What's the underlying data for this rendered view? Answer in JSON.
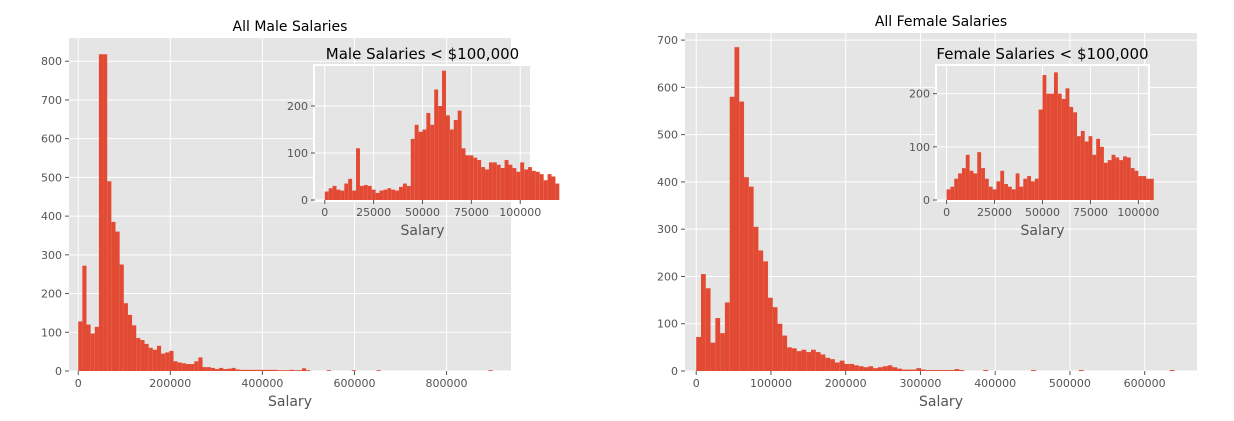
{
  "chart_data": [
    {
      "type": "bar",
      "title": "All Male Salaries",
      "xlabel": "Salary",
      "ylabel": "",
      "xlim": [
        -20000,
        940000
      ],
      "ylim": [
        0,
        860
      ],
      "xticks": [
        {
          "v": 0,
          "label": "0"
        },
        {
          "v": 200000,
          "label": "200000"
        },
        {
          "v": 400000,
          "label": "400000"
        },
        {
          "v": 600000,
          "label": "600000"
        },
        {
          "v": 800000,
          "label": "800000"
        }
      ],
      "yticks": [
        {
          "v": 0,
          "label": "0"
        },
        {
          "v": 100,
          "label": "100"
        },
        {
          "v": 200,
          "label": "200"
        },
        {
          "v": 300,
          "label": "300"
        },
        {
          "v": 400,
          "label": "400"
        },
        {
          "v": 500,
          "label": "500"
        },
        {
          "v": 600,
          "label": "600"
        },
        {
          "v": 700,
          "label": "700"
        },
        {
          "v": 800,
          "label": "800"
        }
      ],
      "bin_start": 0,
      "bin_width": 9000,
      "values": [
        128,
        272,
        120,
        97,
        114,
        818,
        818,
        490,
        385,
        360,
        275,
        175,
        145,
        118,
        85,
        80,
        70,
        60,
        55,
        65,
        45,
        48,
        52,
        25,
        22,
        20,
        18,
        18,
        25,
        35,
        10,
        10,
        8,
        5,
        8,
        5,
        6,
        8,
        4,
        3,
        3,
        3,
        3,
        3,
        3,
        3,
        3,
        3,
        2,
        2,
        2,
        3,
        2,
        2,
        7,
        2,
        0,
        0,
        0,
        0,
        2,
        0,
        0,
        0,
        0,
        0,
        2,
        0,
        0,
        0,
        0,
        0,
        2,
        0,
        0,
        0,
        0,
        0,
        0,
        0,
        0,
        0,
        0,
        0,
        0,
        0,
        0,
        0,
        0,
        0,
        0,
        0,
        0,
        0,
        0,
        0,
        0,
        0,
        0,
        2
      ]
    },
    {
      "type": "bar",
      "title": "Male Salaries < $100,000",
      "xlabel": "Salary",
      "ylabel": "",
      "xlim": [
        -5000,
        105000
      ],
      "ylim": [
        0,
        285
      ],
      "xticks": [
        {
          "v": 0,
          "label": "0"
        },
        {
          "v": 25000,
          "label": "25000"
        },
        {
          "v": 50000,
          "label": "50000"
        },
        {
          "v": 75000,
          "label": "75000"
        },
        {
          "v": 100000,
          "label": "100000"
        }
      ],
      "yticks": [
        {
          "v": 0,
          "label": "0"
        },
        {
          "v": 100,
          "label": "100"
        },
        {
          "v": 200,
          "label": "200"
        }
      ],
      "bin_start": 0,
      "bin_width": 2000,
      "values": [
        18,
        25,
        30,
        22,
        20,
        35,
        45,
        20,
        110,
        30,
        32,
        30,
        22,
        15,
        20,
        22,
        25,
        22,
        20,
        28,
        35,
        30,
        130,
        160,
        145,
        150,
        185,
        160,
        235,
        200,
        275,
        180,
        150,
        170,
        190,
        110,
        95,
        95,
        90,
        85,
        70,
        65,
        80,
        80,
        75,
        68,
        85,
        75,
        68,
        60,
        80,
        65,
        70,
        62,
        60,
        55,
        42,
        55,
        50,
        35
      ]
    },
    {
      "type": "bar",
      "title": "All Female Salaries",
      "xlabel": "Salary",
      "ylabel": "",
      "xlim": [
        -15000,
        670000
      ],
      "ylim": [
        0,
        715
      ],
      "xticks": [
        {
          "v": 0,
          "label": "0"
        },
        {
          "v": 100000,
          "label": "100000"
        },
        {
          "v": 200000,
          "label": "200000"
        },
        {
          "v": 300000,
          "label": "300000"
        },
        {
          "v": 400000,
          "label": "400000"
        },
        {
          "v": 500000,
          "label": "500000"
        },
        {
          "v": 600000,
          "label": "600000"
        }
      ],
      "yticks": [
        {
          "v": 0,
          "label": "0"
        },
        {
          "v": 100,
          "label": "100"
        },
        {
          "v": 200,
          "label": "200"
        },
        {
          "v": 300,
          "label": "300"
        },
        {
          "v": 400,
          "label": "400"
        },
        {
          "v": 500,
          "label": "500"
        },
        {
          "v": 600,
          "label": "600"
        },
        {
          "v": 700,
          "label": "700"
        }
      ],
      "bin_start": 0,
      "bin_width": 6400,
      "values": [
        72,
        205,
        175,
        60,
        112,
        80,
        145,
        580,
        685,
        570,
        410,
        390,
        305,
        255,
        232,
        155,
        135,
        100,
        75,
        50,
        48,
        42,
        45,
        40,
        45,
        40,
        35,
        28,
        25,
        18,
        22,
        15,
        15,
        12,
        10,
        8,
        10,
        6,
        8,
        10,
        12,
        8,
        5,
        3,
        3,
        3,
        6,
        3,
        2,
        2,
        2,
        2,
        2,
        2,
        4,
        2,
        0,
        0,
        0,
        0,
        2,
        0,
        0,
        0,
        0,
        0,
        0,
        0,
        0,
        0,
        2,
        0,
        0,
        0,
        0,
        0,
        0,
        0,
        0,
        0,
        2,
        0,
        0,
        0,
        0,
        0,
        0,
        0,
        0,
        0,
        0,
        0,
        0,
        0,
        0,
        0,
        0,
        0,
        0,
        2
      ]
    },
    {
      "type": "bar",
      "title": "Female Salaries < $100,000",
      "xlabel": "Salary",
      "ylabel": "",
      "xlim": [
        -5000,
        105000
      ],
      "ylim": [
        0,
        252
      ],
      "xticks": [
        {
          "v": 0,
          "label": "0"
        },
        {
          "v": 25000,
          "label": "25000"
        },
        {
          "v": 50000,
          "label": "50000"
        },
        {
          "v": 75000,
          "label": "75000"
        },
        {
          "v": 100000,
          "label": "100000"
        }
      ],
      "yticks": [
        {
          "v": 0,
          "label": "0"
        },
        {
          "v": 100,
          "label": "100"
        },
        {
          "v": 200,
          "label": "200"
        }
      ],
      "bin_start": 0,
      "bin_width": 2000,
      "values": [
        20,
        25,
        40,
        50,
        60,
        85,
        55,
        50,
        90,
        60,
        40,
        25,
        20,
        35,
        55,
        30,
        25,
        20,
        50,
        25,
        40,
        45,
        35,
        40,
        170,
        235,
        200,
        200,
        240,
        200,
        190,
        210,
        175,
        165,
        120,
        130,
        110,
        120,
        85,
        115,
        100,
        70,
        75,
        85,
        80,
        75,
        82,
        80,
        60,
        55,
        45,
        45,
        40,
        40
      ]
    }
  ],
  "colors": {
    "bar": "#e24a33",
    "panel_bg": "#e5e5e5",
    "grid": "#ffffff",
    "tick_text": "#555555",
    "label_text": "#555555",
    "title_text": "#000000"
  }
}
